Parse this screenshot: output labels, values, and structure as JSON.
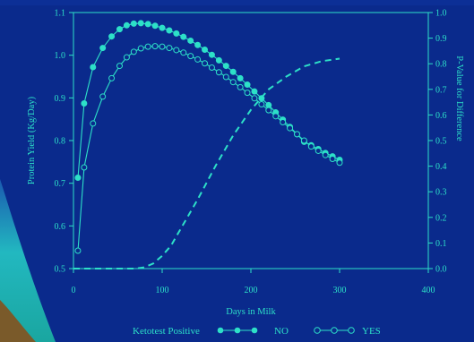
{
  "colors": {
    "background": "#0a2a8c",
    "plot_background": "#0a2a8c",
    "ink": "#2de0c8",
    "backdrop_teal": "#1fa6b8",
    "backdrop_brown": "#7a5a2a"
  },
  "chart_data": {
    "type": "line",
    "xlabel": "Days in Milk",
    "ylabel": "Protein Yield (Kg/Day)",
    "y2label": "P-Value for Difference",
    "xlim": [
      0,
      400
    ],
    "ylim": [
      0.5,
      1.1
    ],
    "y2lim": [
      0.0,
      1.0
    ],
    "xticks": [
      "0",
      "100",
      "200",
      "300",
      "400"
    ],
    "yticks": [
      "0.5",
      "0.6",
      "0.7",
      "0.8",
      "0.9",
      "1.0",
      "1.1"
    ],
    "y2ticks": [
      "0.0",
      "0.1",
      "0.2",
      "0.3",
      "0.4",
      "0.5",
      "0.6",
      "0.7",
      "0.8",
      "0.9",
      "1.0"
    ],
    "grid": false,
    "legend": {
      "title": "Ketotest Positive",
      "position": "bottom"
    },
    "series": [
      {
        "name": "NO",
        "marker": "filled-circle",
        "x": [
          5,
          12,
          22,
          33,
          43,
          52,
          60,
          68,
          76,
          84,
          92,
          100,
          108,
          116,
          124,
          132,
          140,
          148,
          156,
          164,
          172,
          180,
          188,
          196,
          204,
          212,
          220,
          228,
          236,
          244,
          252,
          260,
          268,
          276,
          284,
          292,
          300
        ],
        "values": [
          0.713,
          0.887,
          0.972,
          1.017,
          1.044,
          1.061,
          1.07,
          1.074,
          1.075,
          1.073,
          1.069,
          1.064,
          1.058,
          1.051,
          1.043,
          1.034,
          1.024,
          1.013,
          1.001,
          0.988,
          0.975,
          0.961,
          0.946,
          0.931,
          0.915,
          0.899,
          0.883,
          0.866,
          0.849,
          0.832,
          0.815,
          0.797,
          0.789,
          0.78,
          0.771,
          0.763,
          0.755
        ]
      },
      {
        "name": "YES",
        "marker": "open-circle",
        "x": [
          5,
          12,
          22,
          33,
          43,
          52,
          60,
          68,
          76,
          84,
          92,
          100,
          108,
          116,
          124,
          132,
          140,
          148,
          156,
          164,
          172,
          180,
          188,
          196,
          204,
          212,
          220,
          228,
          236,
          244,
          252,
          260,
          268,
          276,
          284,
          292,
          300
        ],
        "values": [
          0.542,
          0.737,
          0.84,
          0.903,
          0.946,
          0.975,
          0.995,
          1.008,
          1.016,
          1.02,
          1.021,
          1.02,
          1.017,
          1.012,
          1.006,
          0.998,
          0.99,
          0.981,
          0.971,
          0.96,
          0.949,
          0.937,
          0.925,
          0.912,
          0.899,
          0.885,
          0.871,
          0.857,
          0.843,
          0.829,
          0.815,
          0.8,
          0.786,
          0.776,
          0.766,
          0.757,
          0.748
        ]
      },
      {
        "name": "P-Value",
        "axis": "y2",
        "style": "dashed",
        "x": [
          0,
          40,
          70,
          80,
          90,
          100,
          110,
          120,
          140,
          160,
          180,
          200,
          220,
          240,
          260,
          280,
          300
        ],
        "values": [
          0.0,
          0.0,
          0.0,
          0.005,
          0.02,
          0.05,
          0.09,
          0.15,
          0.27,
          0.4,
          0.52,
          0.62,
          0.7,
          0.75,
          0.79,
          0.81,
          0.82
        ]
      }
    ]
  }
}
